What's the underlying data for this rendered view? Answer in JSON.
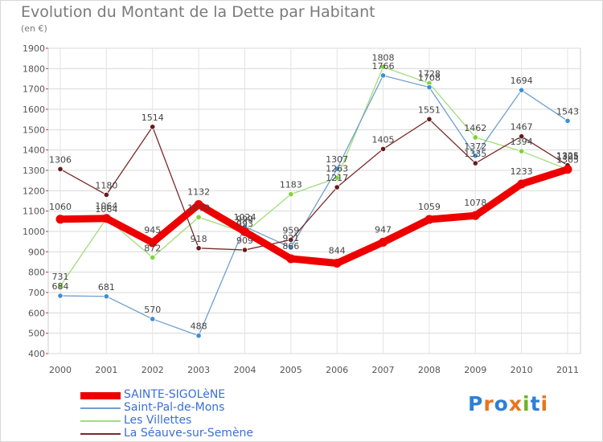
{
  "title": "Evolution du Montant de la Dette par Habitant",
  "unit": "(en €)",
  "logo": {
    "letters": [
      "P",
      "r",
      "o",
      "x",
      "i",
      "t",
      "i"
    ],
    "colors": [
      "#2f7fd6",
      "#e8741e",
      "#2f7fd6",
      "#e8741e",
      "#6fb22a",
      "#2f7fd6",
      "#e8741e"
    ]
  },
  "chart_data": {
    "type": "line",
    "x": [
      "2000",
      "2001",
      "2002",
      "2003",
      "2004",
      "2005",
      "2006",
      "2007",
      "2008",
      "2009",
      "2010",
      "2011"
    ],
    "ylim": [
      400,
      1900
    ],
    "yticks": [
      "400",
      "500",
      "600",
      "700",
      "800",
      "900",
      "1000",
      "1100",
      "1200",
      "1300",
      "1400",
      "1500",
      "1600",
      "1700",
      "1800",
      "1900"
    ],
    "grid": true,
    "legend": "bottom-left",
    "series": [
      {
        "name": "SAINTE-SIGOLèNE",
        "color": "#ee0000",
        "marker": "#ee0000",
        "values": [
          1060,
          1064,
          945,
          1132,
          999,
          866,
          844,
          947,
          1059,
          1078,
          1233,
          1305
        ],
        "labels": [
          "1060",
          "1064",
          "945",
          "1132",
          "999",
          "866",
          "844",
          "947",
          "1059",
          "1078",
          "1233",
          "1305"
        ]
      },
      {
        "name": "Saint-Pal-de-Mons",
        "color": "#6f9fcf",
        "marker": "#3d8fd8",
        "values": [
          684,
          681,
          570,
          488,
          1024,
          921,
          1307,
          1766,
          1708,
          1372,
          1694,
          1543
        ],
        "labels": [
          "684",
          "681",
          "570",
          "488",
          "1024",
          "921",
          "1307",
          "1766",
          "1708",
          "1372",
          "1694",
          "1543"
        ]
      },
      {
        "name": "Les Villettes",
        "color": "#a2dc7c",
        "marker": "#7fd33a",
        "values": [
          731,
          1064,
          872,
          1070,
          993,
          1183,
          1263,
          1808,
          1728,
          1462,
          1394,
          1305
        ],
        "labels": [
          "731",
          "1064",
          "872",
          "1070",
          "993",
          "1183",
          "1263",
          "1808",
          "1728",
          "1462",
          "1394",
          "1305"
        ]
      },
      {
        "name": "La Séauve-sur-Semène",
        "color": "#7a2a2a",
        "marker": "#6a1a1a",
        "values": [
          1306,
          1180,
          1514,
          918,
          909,
          959,
          1217,
          1405,
          1551,
          1335,
          1467,
          1325
        ],
        "labels": [
          "1306",
          "1180",
          "1514",
          "918",
          "909",
          "959",
          "1217",
          "1405",
          "1551",
          "1335",
          "1467",
          "1325"
        ]
      }
    ]
  }
}
